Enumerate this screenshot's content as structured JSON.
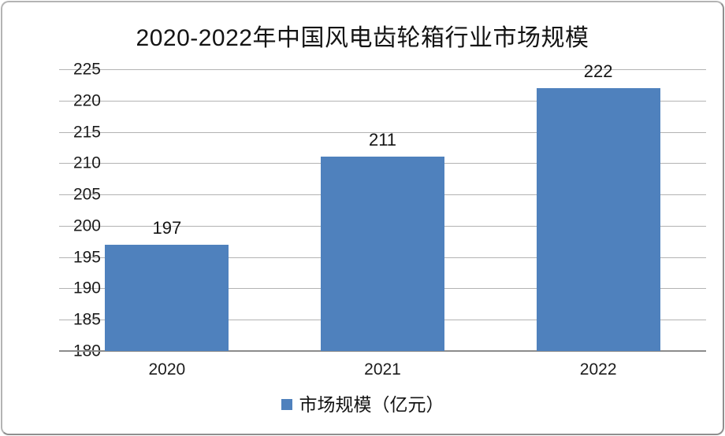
{
  "frame": {
    "border_color": "#9f9f9f",
    "background": "#ffffff"
  },
  "chart_data": {
    "type": "bar",
    "title": "2020-2022年中国风电齿轮箱行业市场规模",
    "categories": [
      "2020",
      "2021",
      "2022"
    ],
    "series": [
      {
        "name": "市场规模（亿元）",
        "values": [
          197,
          211,
          222
        ]
      }
    ],
    "data_labels": [
      "197",
      "211",
      "222"
    ],
    "ylim": [
      180,
      225
    ],
    "yticks": [
      180,
      185,
      190,
      195,
      200,
      205,
      210,
      215,
      220,
      225
    ],
    "xlabel": "",
    "ylabel": "",
    "grid": true,
    "legend_position": "bottom",
    "colors": {
      "bar": "#4F81BD",
      "gridline": "#b3b3b3",
      "axis_line": "#8c8c8c",
      "text": "#141414"
    },
    "legend": {
      "marker": "blue-square-icon",
      "label": "市场规模（亿元）"
    }
  }
}
